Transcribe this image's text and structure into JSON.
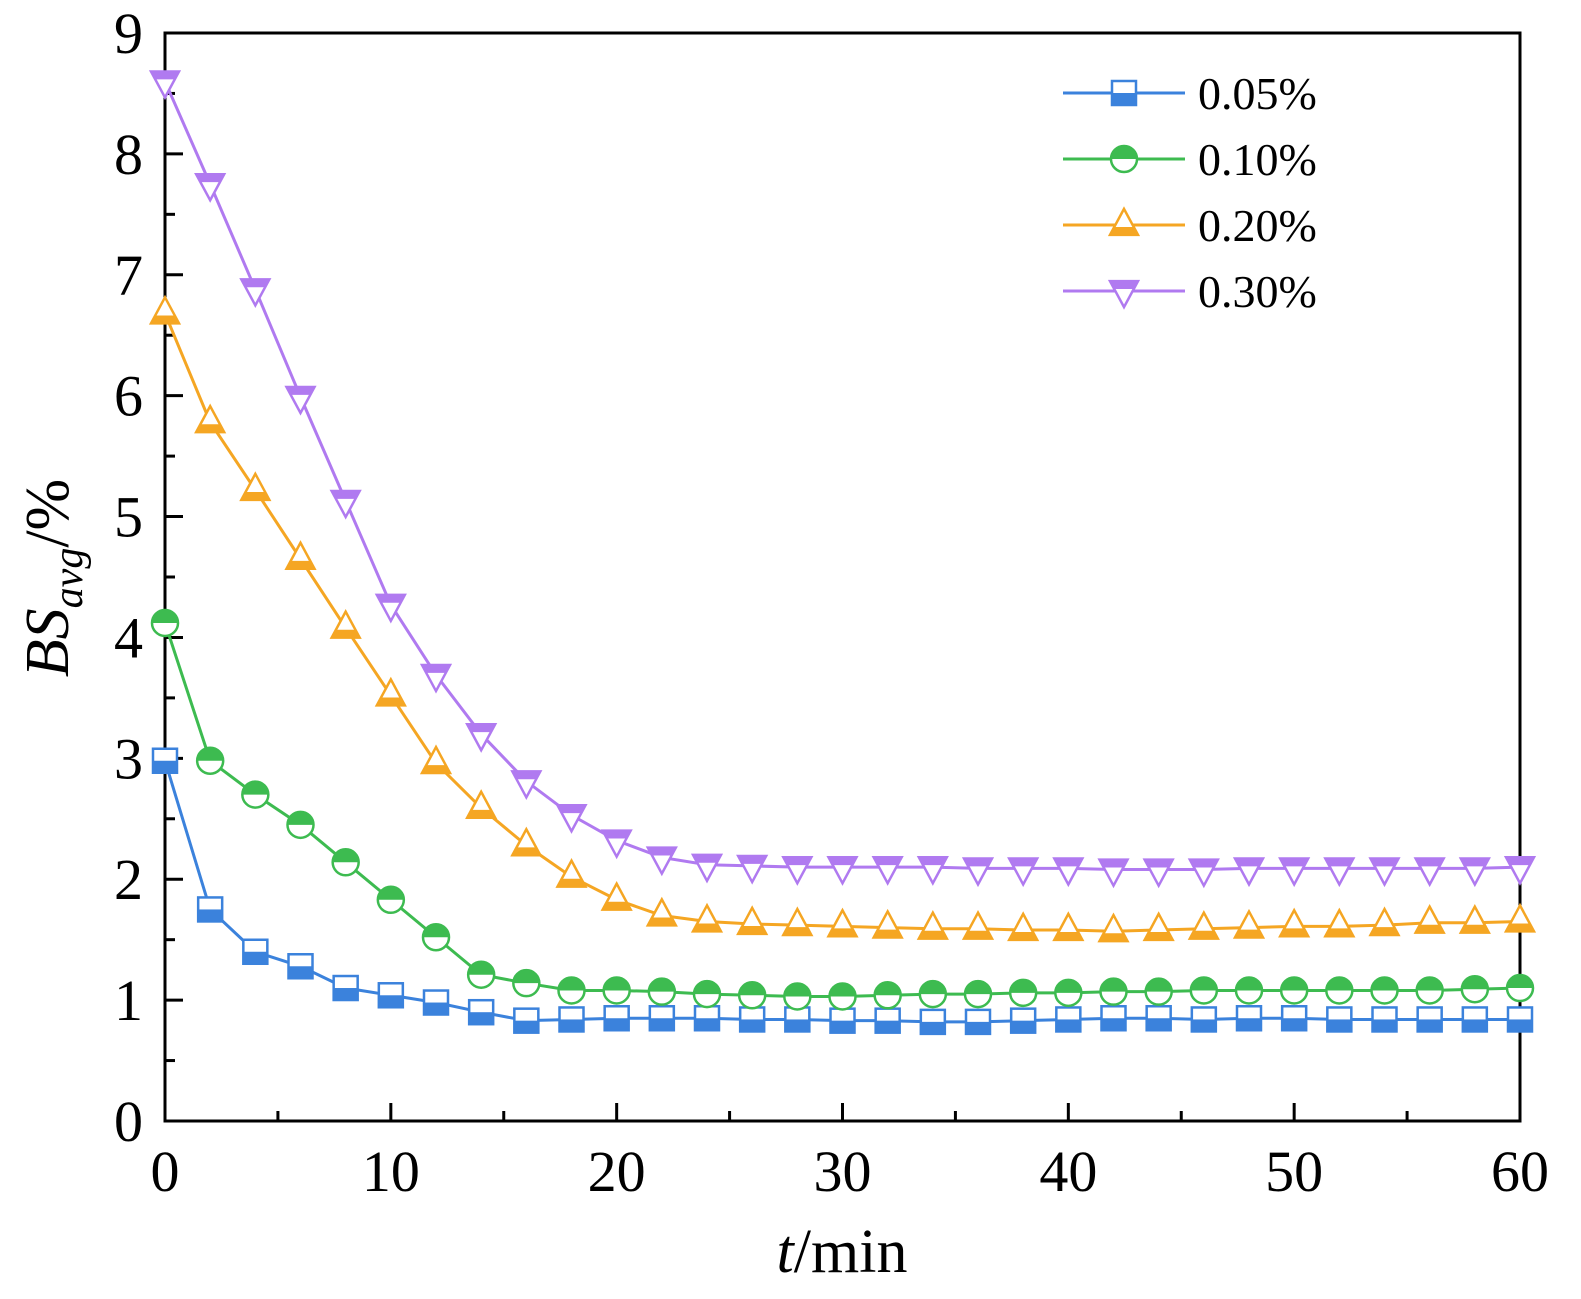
{
  "chart_data": {
    "type": "line",
    "xlabel": {
      "italic": "t",
      "rest": "/min"
    },
    "ylabel": {
      "main": "BS",
      "sub": "avg",
      "rest": "/%"
    },
    "xlim": [
      0,
      60
    ],
    "ylim": [
      0,
      9
    ],
    "xticks": [
      0,
      10,
      20,
      30,
      40,
      50,
      60
    ],
    "yticks": [
      0,
      1,
      2,
      3,
      4,
      5,
      6,
      7,
      8,
      9
    ],
    "grid": false,
    "legend_position": "top-right",
    "x": [
      0,
      2,
      4,
      6,
      8,
      10,
      12,
      14,
      16,
      18,
      20,
      22,
      24,
      26,
      28,
      30,
      32,
      34,
      36,
      38,
      40,
      42,
      44,
      46,
      48,
      50,
      52,
      54,
      56,
      58,
      60
    ],
    "series": [
      {
        "name": "0.05%",
        "color": "#3b82dc",
        "marker": "square",
        "values": [
          2.98,
          1.75,
          1.4,
          1.28,
          1.1,
          1.04,
          0.98,
          0.9,
          0.83,
          0.84,
          0.85,
          0.85,
          0.85,
          0.84,
          0.84,
          0.83,
          0.83,
          0.82,
          0.82,
          0.83,
          0.84,
          0.85,
          0.85,
          0.84,
          0.85,
          0.85,
          0.84,
          0.84,
          0.84,
          0.84,
          0.84
        ]
      },
      {
        "name": "0.10%",
        "color": "#3dbb50",
        "marker": "circle",
        "values": [
          4.12,
          2.98,
          2.7,
          2.45,
          2.14,
          1.83,
          1.52,
          1.21,
          1.14,
          1.08,
          1.08,
          1.07,
          1.05,
          1.04,
          1.03,
          1.03,
          1.04,
          1.05,
          1.05,
          1.06,
          1.06,
          1.07,
          1.07,
          1.08,
          1.08,
          1.08,
          1.08,
          1.08,
          1.08,
          1.09,
          1.1
        ]
      },
      {
        "name": "0.20%",
        "color": "#f5a623",
        "marker": "triangle-up",
        "values": [
          6.68,
          5.78,
          5.22,
          4.65,
          4.08,
          3.52,
          2.96,
          2.59,
          2.28,
          2.02,
          1.83,
          1.7,
          1.65,
          1.63,
          1.62,
          1.61,
          1.6,
          1.59,
          1.59,
          1.58,
          1.58,
          1.57,
          1.58,
          1.59,
          1.6,
          1.61,
          1.61,
          1.62,
          1.64,
          1.64,
          1.65
        ]
      },
      {
        "name": "0.30%",
        "color": "#b07af0",
        "marker": "triangle-down",
        "values": [
          8.6,
          7.75,
          6.88,
          5.99,
          5.13,
          4.27,
          3.69,
          3.2,
          2.81,
          2.53,
          2.32,
          2.18,
          2.12,
          2.11,
          2.1,
          2.1,
          2.1,
          2.1,
          2.09,
          2.09,
          2.09,
          2.08,
          2.08,
          2.08,
          2.09,
          2.09,
          2.09,
          2.09,
          2.09,
          2.09,
          2.1
        ]
      }
    ]
  }
}
